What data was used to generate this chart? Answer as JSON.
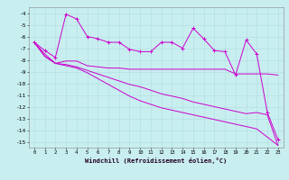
{
  "xlabel": "Windchill (Refroidissement éolien,°C)",
  "bg_color": "#c8eef0",
  "grid_color": "#b0dde0",
  "line_color": "#cc00cc",
  "xlim": [
    -0.5,
    23.5
  ],
  "ylim": [
    -15.5,
    -3.5
  ],
  "yticks": [
    -4,
    -5,
    -6,
    -7,
    -8,
    -9,
    -10,
    -11,
    -12,
    -13,
    -14,
    -15
  ],
  "xticks": [
    0,
    1,
    2,
    3,
    4,
    5,
    6,
    7,
    8,
    9,
    10,
    11,
    12,
    13,
    14,
    15,
    16,
    17,
    18,
    19,
    20,
    21,
    22,
    23
  ],
  "line1_x": [
    0,
    1,
    2,
    3,
    4,
    5,
    6,
    7,
    8,
    9,
    10,
    11,
    12,
    13,
    14,
    15,
    16,
    17,
    18,
    19,
    20,
    21,
    22,
    23
  ],
  "line1_y": [
    -6.5,
    -7.2,
    -7.8,
    -4.1,
    -4.5,
    -6.0,
    -6.2,
    -6.5,
    -6.5,
    -7.1,
    -7.3,
    -7.3,
    -6.5,
    -6.5,
    -7.0,
    -5.3,
    -6.2,
    -7.2,
    -7.3,
    -9.3,
    -6.3,
    -7.5,
    -12.5,
    -14.8
  ],
  "line2_x": [
    0,
    1,
    2,
    3,
    4,
    5,
    6,
    7,
    8,
    9,
    10,
    11,
    12,
    13,
    14,
    15,
    16,
    17,
    18,
    19,
    20,
    21,
    22,
    23
  ],
  "line2_y": [
    -6.5,
    -7.5,
    -8.3,
    -8.1,
    -8.1,
    -8.5,
    -8.6,
    -8.7,
    -8.7,
    -8.8,
    -8.8,
    -8.8,
    -8.8,
    -8.8,
    -8.8,
    -8.8,
    -8.8,
    -8.8,
    -8.8,
    -9.2,
    -9.2,
    -9.2,
    -9.2,
    -9.3
  ],
  "line3_x": [
    0,
    1,
    2,
    3,
    4,
    5,
    6,
    7,
    8,
    9,
    10,
    11,
    12,
    13,
    14,
    15,
    16,
    17,
    18,
    19,
    20,
    21,
    22,
    23
  ],
  "line3_y": [
    -6.5,
    -7.7,
    -8.3,
    -8.4,
    -8.6,
    -8.9,
    -9.2,
    -9.5,
    -9.8,
    -10.1,
    -10.3,
    -10.6,
    -10.9,
    -11.1,
    -11.3,
    -11.6,
    -11.8,
    -12.0,
    -12.2,
    -12.4,
    -12.6,
    -12.5,
    -12.7,
    -15.3
  ],
  "line4_x": [
    0,
    1,
    2,
    3,
    4,
    5,
    6,
    7,
    8,
    9,
    10,
    11,
    12,
    13,
    14,
    15,
    16,
    17,
    18,
    19,
    20,
    21,
    22,
    23
  ],
  "line4_y": [
    -6.5,
    -7.7,
    -8.3,
    -8.5,
    -8.7,
    -9.1,
    -9.6,
    -10.1,
    -10.6,
    -11.1,
    -11.5,
    -11.8,
    -12.1,
    -12.3,
    -12.5,
    -12.7,
    -12.9,
    -13.1,
    -13.3,
    -13.5,
    -13.7,
    -13.9,
    -14.6,
    -15.3
  ]
}
